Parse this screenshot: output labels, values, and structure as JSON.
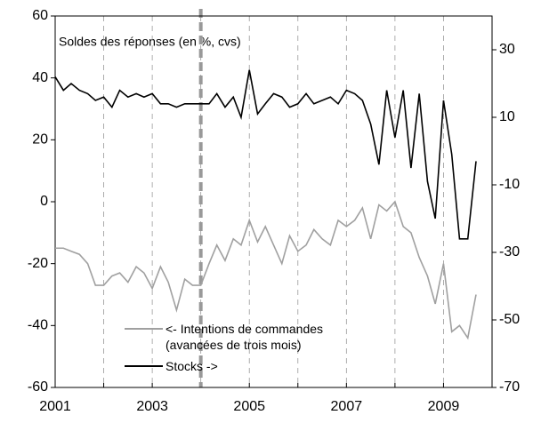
{
  "chart_data": {
    "type": "line",
    "subtitle": "Soldes des réponses (en %, cvs)",
    "x": [
      2001.0,
      2001.17,
      2001.33,
      2001.5,
      2001.67,
      2001.83,
      2002.0,
      2002.17,
      2002.33,
      2002.5,
      2002.67,
      2002.83,
      2003.0,
      2003.17,
      2003.33,
      2003.5,
      2003.67,
      2003.83,
      2004.0,
      2004.17,
      2004.33,
      2004.5,
      2004.67,
      2004.83,
      2005.0,
      2005.17,
      2005.33,
      2005.5,
      2005.67,
      2005.83,
      2006.0,
      2006.17,
      2006.33,
      2006.5,
      2006.67,
      2006.83,
      2007.0,
      2007.17,
      2007.33,
      2007.5,
      2007.67,
      2007.83,
      2008.0,
      2008.17,
      2008.33,
      2008.5,
      2008.67,
      2008.83,
      2009.0,
      2009.17,
      2009.33,
      2009.5,
      2009.67
    ],
    "series": [
      {
        "name": "<- Intentions de commandes (avancées de trois mois)",
        "color": "#a0a0a0",
        "axis": "y",
        "values": [
          -15,
          -15,
          -16,
          -17,
          -20,
          -27,
          -27,
          -24,
          -23,
          -26,
          -21,
          -23,
          -28,
          -21,
          -26,
          -35,
          -25,
          -27,
          -27,
          -20,
          -14,
          -19,
          -12,
          -14,
          -6,
          -13,
          -8,
          -14,
          -20,
          -11,
          -16,
          -14,
          -9,
          -12,
          -14,
          -6,
          -8,
          -6,
          -2,
          -12,
          -1,
          -3,
          0,
          -8,
          -10,
          -18,
          -24,
          -33,
          -20,
          -42,
          -40,
          -44,
          -30
        ]
      },
      {
        "name": "Stocks ->",
        "color": "#000000",
        "axis": "y2",
        "values": [
          22,
          18,
          20,
          18,
          17,
          15,
          16,
          13,
          18,
          16,
          17,
          16,
          17,
          14,
          14,
          13,
          14,
          14,
          14,
          14,
          17,
          13,
          16,
          10,
          24,
          11,
          14,
          17,
          16,
          13,
          14,
          17,
          14,
          15,
          16,
          14,
          18,
          17,
          15,
          8,
          -4,
          18,
          4,
          18,
          -5,
          17,
          -9,
          -20,
          15,
          -1,
          -26,
          -26,
          -3
        ]
      }
    ],
    "xlim": [
      2001,
      2010
    ],
    "xticks": [
      2001,
      2003,
      2005,
      2007,
      2009
    ],
    "xgrid_minor": [
      2002,
      2004,
      2006,
      2008
    ],
    "vline": 2004,
    "ylim": [
      -60,
      60
    ],
    "yticks": [
      -60,
      -40,
      -20,
      0,
      20,
      40,
      60
    ],
    "y2lim": [
      -70,
      40
    ],
    "y2ticks": [
      -70,
      -50,
      -30,
      -10,
      10,
      30
    ]
  }
}
